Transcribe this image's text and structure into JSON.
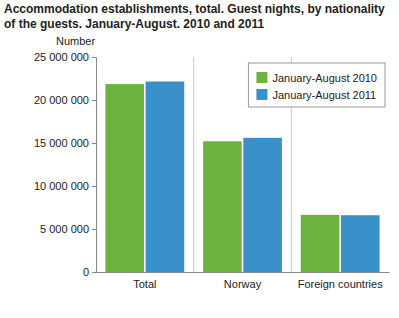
{
  "chart_data": {
    "type": "bar",
    "title": "Accommodation establishments, total. Guest nights, by nationality of the guests. January-August. 2010 and 2011",
    "y_label": "Number",
    "categories": [
      "Total",
      "Norway",
      "Foreign countries"
    ],
    "series": [
      {
        "name": "January-August 2010",
        "color": "#6cb33f",
        "values": [
          21850000,
          15200000,
          6650000
        ]
      },
      {
        "name": "January-August 2011",
        "color": "#3a90c8",
        "values": [
          22150000,
          15600000,
          6600000
        ]
      }
    ],
    "ylim": [
      0,
      25000000
    ],
    "yticks": [
      0,
      {
        "value": 5000000,
        "label": "5 000 000"
      },
      {
        "value": 10000000,
        "label": "10 000 000"
      },
      {
        "value": 15000000,
        "label": "15 000 000"
      },
      {
        "value": 20000000,
        "label": "20 000 000"
      },
      {
        "value": 25000000,
        "label": "25 000 000"
      }
    ],
    "grid": false,
    "legend": "upper right"
  }
}
